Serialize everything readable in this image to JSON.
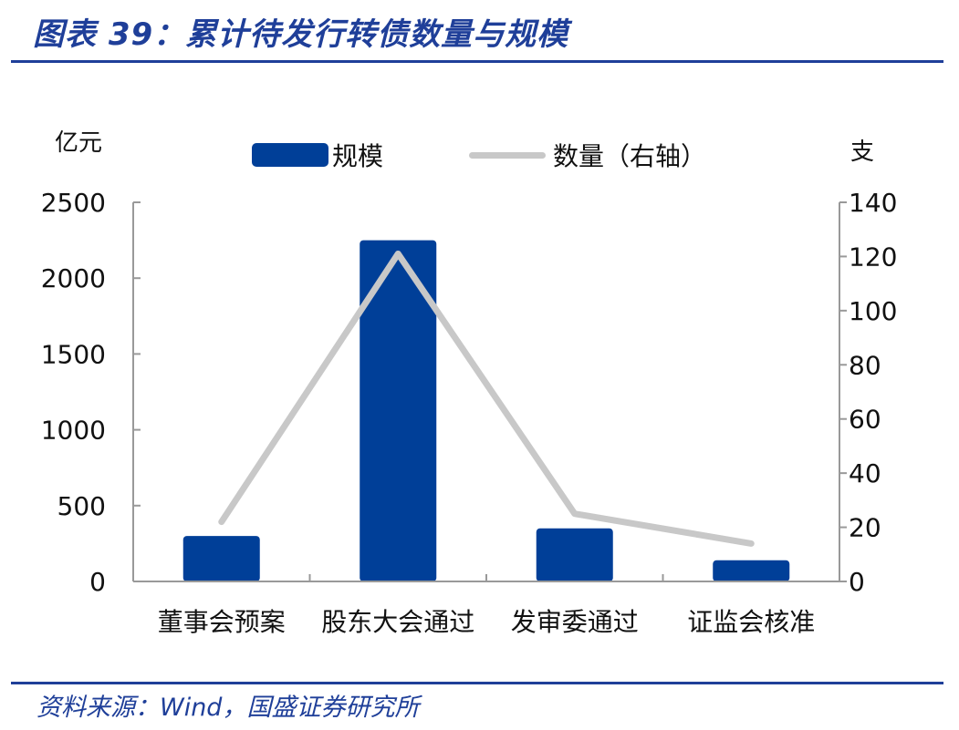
{
  "header": {
    "title": "图表 39：累计待发行转债数量与规模"
  },
  "footer": {
    "source": "资料来源：Wind，国盛证券研究所"
  },
  "colors": {
    "bar": "#003f98",
    "line": "#c8c8c8",
    "title": "#1f3f99",
    "axis": "#999999"
  },
  "chart_data": {
    "type": "bar",
    "categories": [
      "董事会预案",
      "股东大会通过",
      "发审委通过",
      "证监会核准"
    ],
    "series": [
      {
        "name": "规模",
        "type": "bar",
        "axis": "left",
        "values": [
          300,
          2250,
          350,
          140
        ]
      },
      {
        "name": "数量（右轴）",
        "type": "line",
        "axis": "right",
        "values": [
          22,
          121,
          25,
          14
        ]
      }
    ],
    "y_left": {
      "label": "亿元",
      "min": 0,
      "max": 2500,
      "ticks": [
        0,
        500,
        1000,
        1500,
        2000,
        2500
      ]
    },
    "y_right": {
      "label": "支",
      "min": 0,
      "max": 140,
      "ticks": [
        0,
        20,
        40,
        60,
        80,
        100,
        120,
        140
      ]
    },
    "grid": false,
    "legend_position": "top"
  }
}
